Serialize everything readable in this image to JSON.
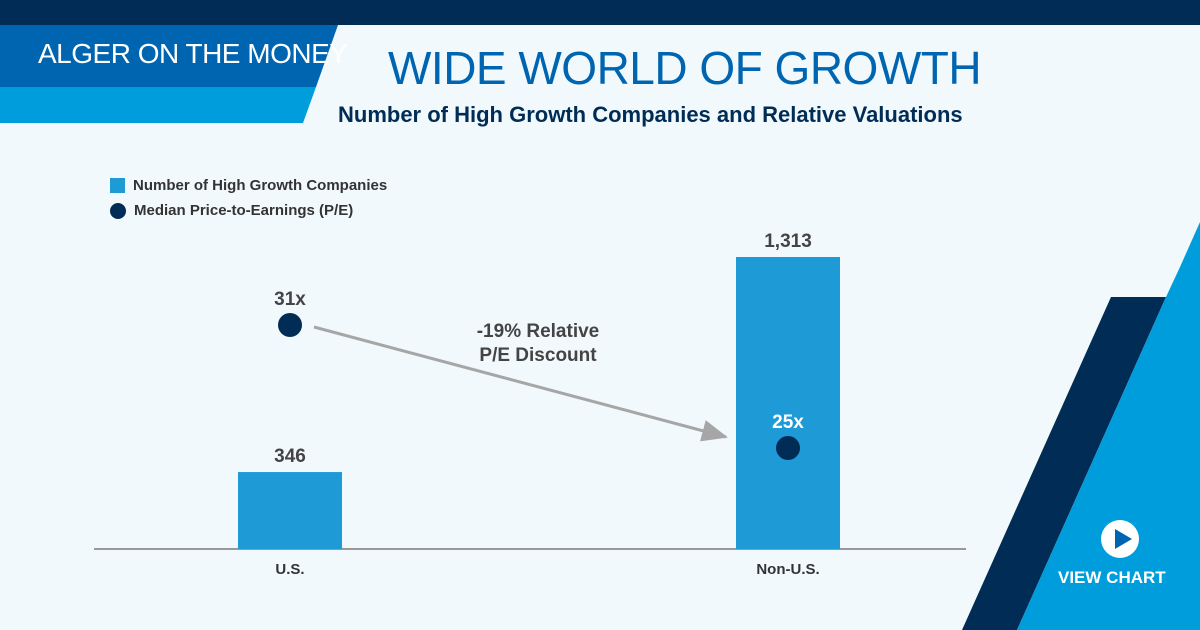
{
  "header": {
    "brand": "ALGER ON THE MONEY",
    "title": "WIDE WORLD OF GROWTH",
    "subtitle": "Number of High Growth Companies and Relative Valuations"
  },
  "cta": {
    "label": "VIEW CHART",
    "icon": "play-icon"
  },
  "colors": {
    "navy": "#002c55",
    "blue": "#0065b0",
    "light_blue": "#009ddd",
    "bar": "#1e9ad6",
    "arrow": "#a6a6a6"
  },
  "chart_data": {
    "type": "bar",
    "categories": [
      "U.S.",
      "Non-U.S."
    ],
    "series": [
      {
        "name": "Number of High Growth Companies",
        "type": "bar",
        "values": [
          346,
          1313
        ],
        "labels": [
          "346",
          "1,313"
        ]
      },
      {
        "name": "Median Price-to-Earnings (P/E)",
        "type": "scatter",
        "values": [
          31,
          25
        ],
        "labels": [
          "31x",
          "25x"
        ]
      }
    ],
    "annotation": {
      "line1": "-19% Relative",
      "line2": "P/E Discount"
    },
    "legend": "top-left",
    "grid": false
  }
}
